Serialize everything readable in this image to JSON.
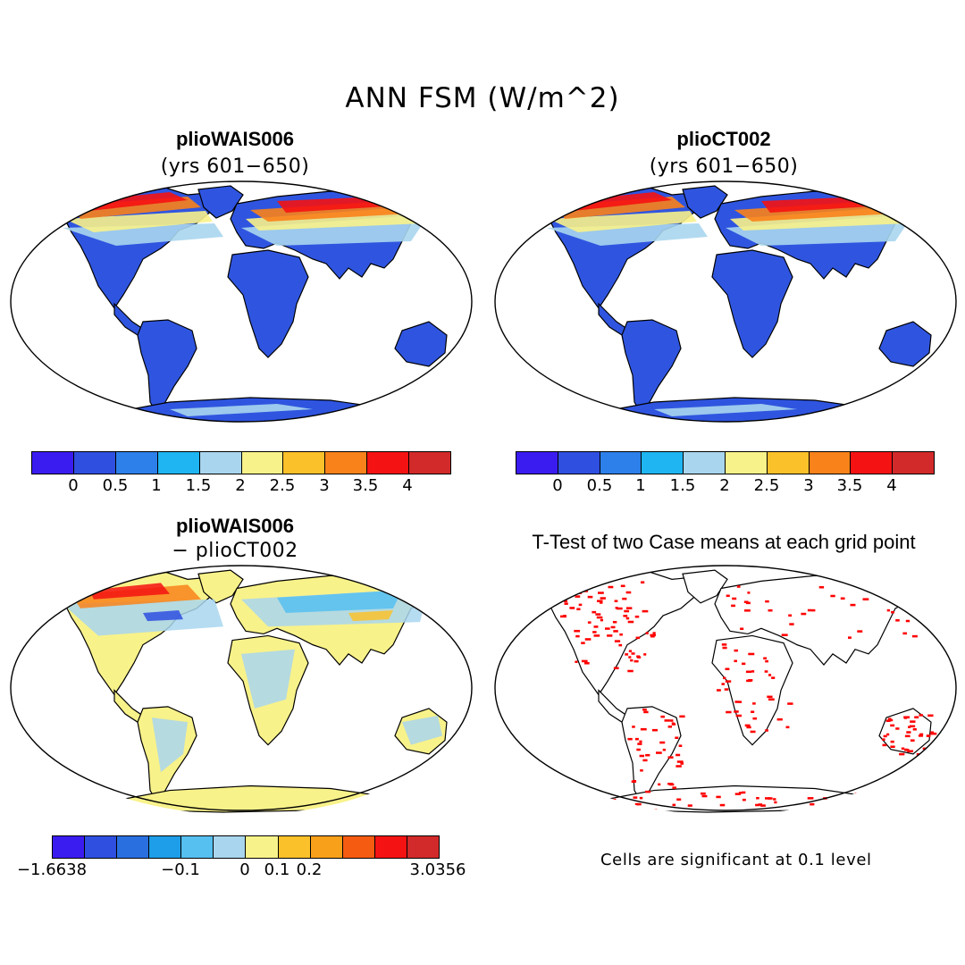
{
  "figure": {
    "title": "ANN FSM (W/m^2)",
    "footnote": "Cells are significant at 0.1 level"
  },
  "panels": {
    "top_left": {
      "title": "plioWAIS006",
      "subtitle": "(yrs 601−650)"
    },
    "top_right": {
      "title": "plioCT002",
      "subtitle": "(yrs 601−650)"
    },
    "bottom_left": {
      "title": "plioWAIS006",
      "subtitle": "− plioCT002"
    },
    "bottom_right": {
      "title": "T-Test of two Case means at each grid point"
    }
  },
  "colorbars": {
    "mean": {
      "colors": [
        "#3b1cf0",
        "#2f4fe0",
        "#2d7fea",
        "#1eb5f2",
        "#a9d6ee",
        "#f8f28a",
        "#fbc12a",
        "#f9821a",
        "#f51212",
        "#d22a2a"
      ],
      "labels": [
        "0",
        "0.5",
        "1",
        "1.5",
        "2",
        "2.5",
        "3",
        "3.5",
        "4"
      ]
    },
    "diff": {
      "colors": [
        "#3b1cf0",
        "#2f4fe0",
        "#2a6fe0",
        "#1e9ee8",
        "#56c0f0",
        "#a9d6ee",
        "#f8f28a",
        "#fbc12a",
        "#f9a01a",
        "#f65b12",
        "#f51212",
        "#d22a2a"
      ],
      "labels": [
        "−1.6638",
        "−0.1",
        "0",
        "0.1",
        "0.2",
        "3.0356"
      ]
    }
  },
  "legend": {
    "significance_color": "#ff0000",
    "land_low_color": "#2f55e0",
    "ocean_color": "#ffffff"
  }
}
